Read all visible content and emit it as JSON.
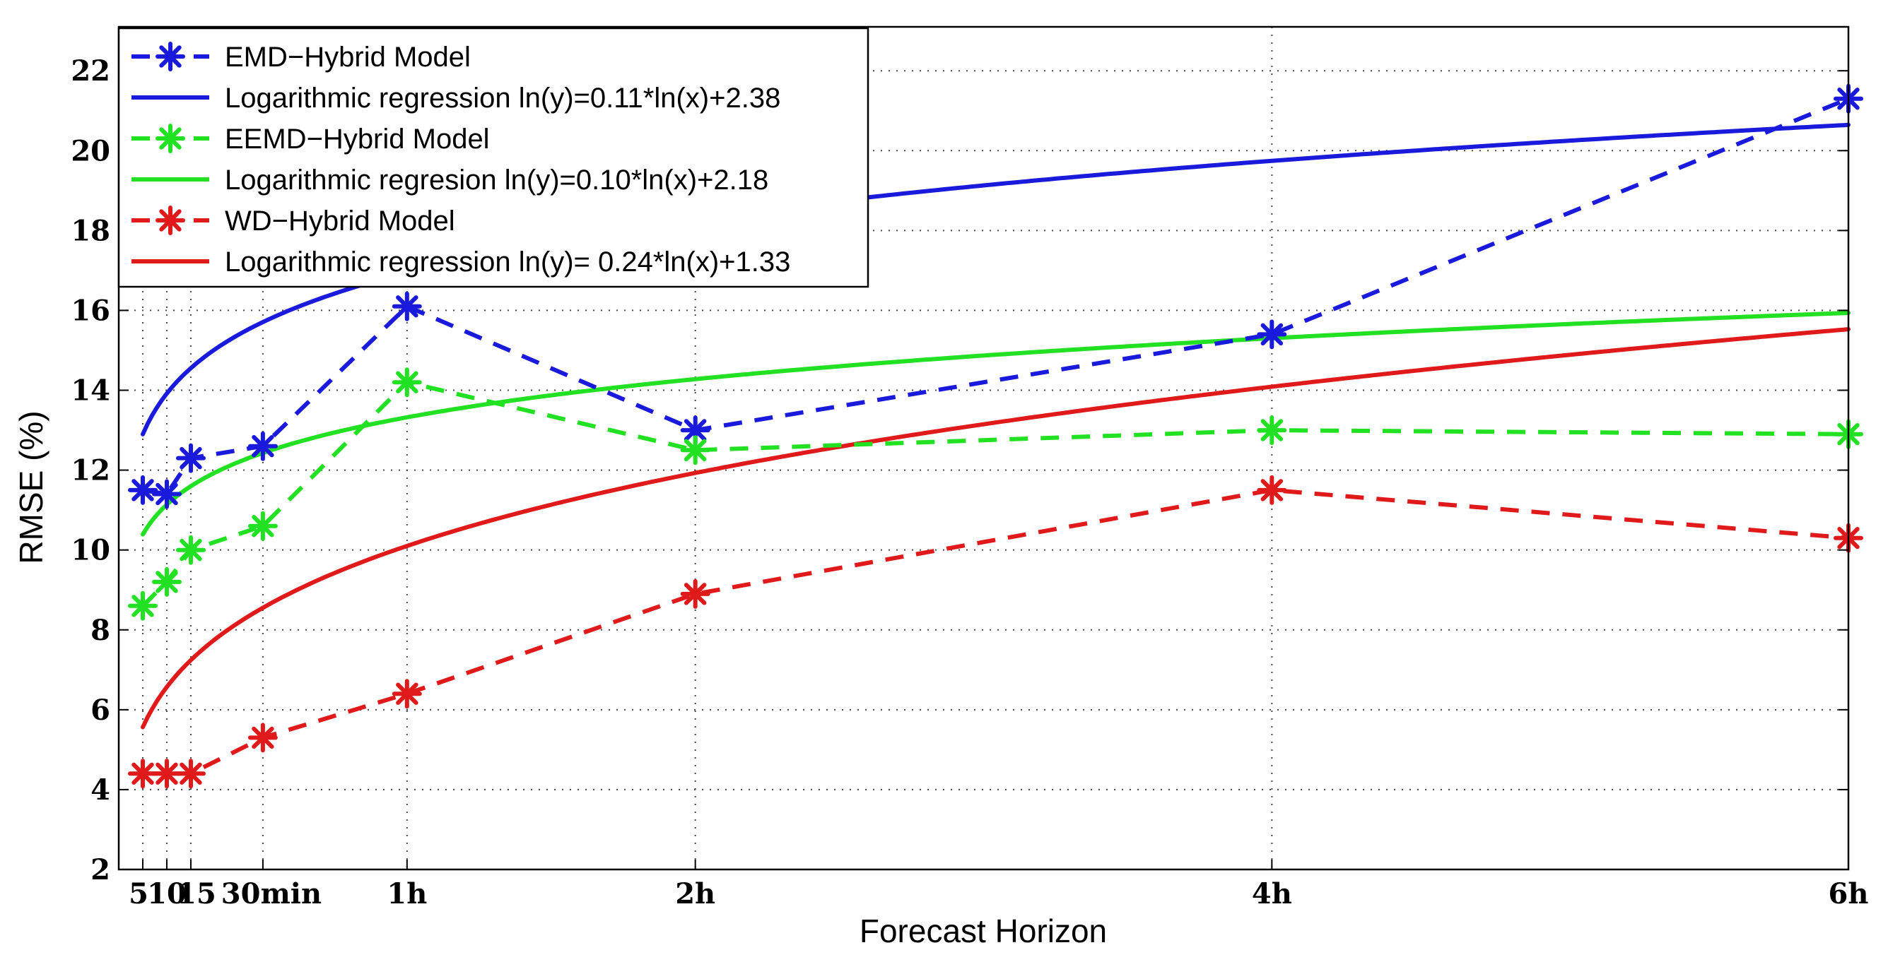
{
  "chart_data": {
    "type": "line",
    "title": "",
    "xlabel": "Forecast Horizon",
    "ylabel": "RMSE (%)",
    "x_unit": "minutes",
    "x": [
      5,
      10,
      15,
      30,
      60,
      120,
      240,
      360
    ],
    "x_tick_labels": [
      "5",
      "10",
      "15",
      "30min",
      "1h",
      "2h",
      "4h",
      "6h"
    ],
    "xlim": [
      0,
      360
    ],
    "ylim": [
      2,
      23
    ],
    "yticks": [
      2,
      4,
      6,
      8,
      10,
      12,
      14,
      16,
      18,
      20,
      22
    ],
    "grid": true,
    "legend_position": "top-left",
    "series": [
      {
        "name": "EMD−Hybrid Model",
        "style": "dashed-star",
        "color": "#1a1adc",
        "values": [
          11.5,
          11.4,
          12.3,
          12.6,
          16.1,
          13.0,
          15.4,
          21.3
        ]
      },
      {
        "name": "Logarithmic regression ln(y)=0.11*ln(x)+2.38",
        "style": "solid",
        "color": "#1a1adc",
        "fit": {
          "a": 0.11,
          "b": 2.38
        }
      },
      {
        "name": "EEMD−Hybrid Model",
        "style": "dashed-star",
        "color": "#22e022",
        "values": [
          8.6,
          9.2,
          10.0,
          10.6,
          14.2,
          12.5,
          13.0,
          12.9
        ]
      },
      {
        "name": "Logarithmic regresion ln(y)=0.10*ln(x)+2.18",
        "style": "solid",
        "color": "#22e022",
        "fit": {
          "a": 0.1,
          "b": 2.18
        }
      },
      {
        "name": "WD−Hybrid Model",
        "style": "dashed-star",
        "color": "#e01a1a",
        "values": [
          4.4,
          4.4,
          4.4,
          5.3,
          6.4,
          8.9,
          11.5,
          10.3
        ]
      },
      {
        "name": "Logarithmic regression ln(y)= 0.24*ln(x)+1.33",
        "style": "solid",
        "color": "#e01a1a",
        "fit": {
          "a": 0.24,
          "b": 1.33
        }
      }
    ]
  }
}
